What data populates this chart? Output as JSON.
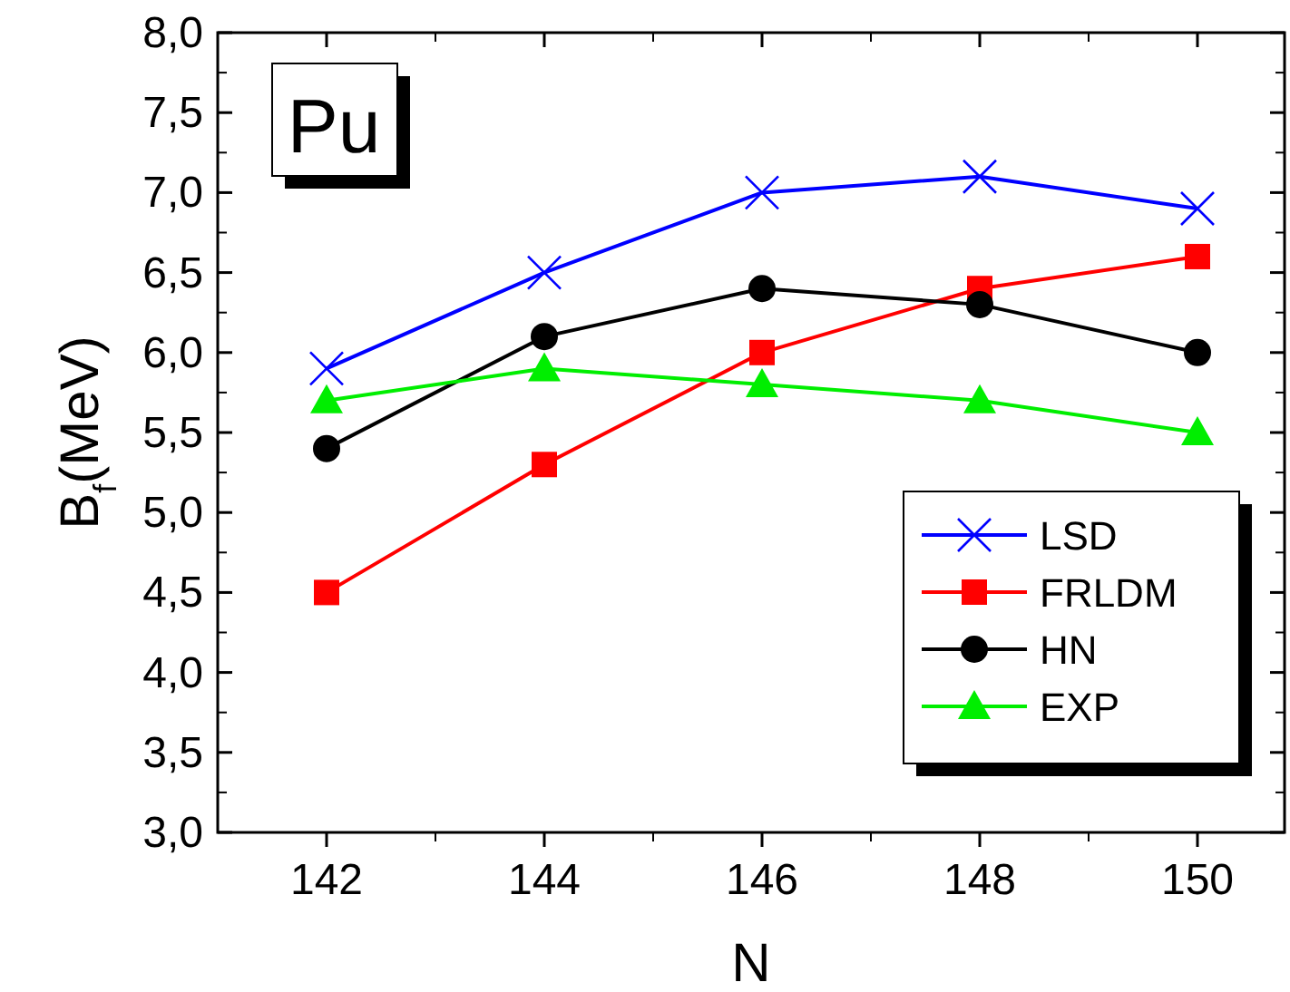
{
  "chart_data": {
    "type": "line",
    "xlabel": "N",
    "ylabel": "B$_{f}$(MeV)",
    "annotations": [
      "Pu"
    ],
    "x": [
      142,
      144,
      146,
      148,
      150
    ],
    "xlim": [
      141,
      150.8
    ],
    "xticks": [
      142,
      144,
      146,
      148,
      150
    ],
    "ylim": [
      3,
      8
    ],
    "yticks": [
      {
        "value": 3,
        "label": "3,0"
      },
      {
        "value": 3.5,
        "label": "3,5"
      },
      {
        "value": 4,
        "label": "4,0"
      },
      {
        "value": 4.5,
        "label": "4,5"
      },
      {
        "value": 5,
        "label": "5,0"
      },
      {
        "value": 5.5,
        "label": "5,5"
      },
      {
        "value": 6,
        "label": "6,0"
      },
      {
        "value": 6.5,
        "label": "6,5"
      },
      {
        "value": 7,
        "label": "7,0"
      },
      {
        "value": 7.5,
        "label": "7,5"
      },
      {
        "value": 8,
        "label": "8,0"
      }
    ],
    "grid": false,
    "legend": "bottom right",
    "series": [
      {
        "name": "LSD",
        "color": "#0000ff",
        "marker": "cross",
        "values": [
          5.9,
          6.5,
          7.0,
          7.1,
          6.9
        ]
      },
      {
        "name": "FRLDM",
        "color": "#ff0000",
        "marker": "square",
        "values": [
          4.5,
          5.3,
          6.0,
          6.4,
          6.6
        ]
      },
      {
        "name": "HN",
        "color": "#000000",
        "marker": "circle",
        "values": [
          5.4,
          6.1,
          6.4,
          6.3,
          6.0
        ]
      },
      {
        "name": "EXP",
        "color": "#00ee00",
        "marker": "triangle",
        "values": [
          5.7,
          5.9,
          5.8,
          5.7,
          5.5
        ]
      }
    ]
  }
}
